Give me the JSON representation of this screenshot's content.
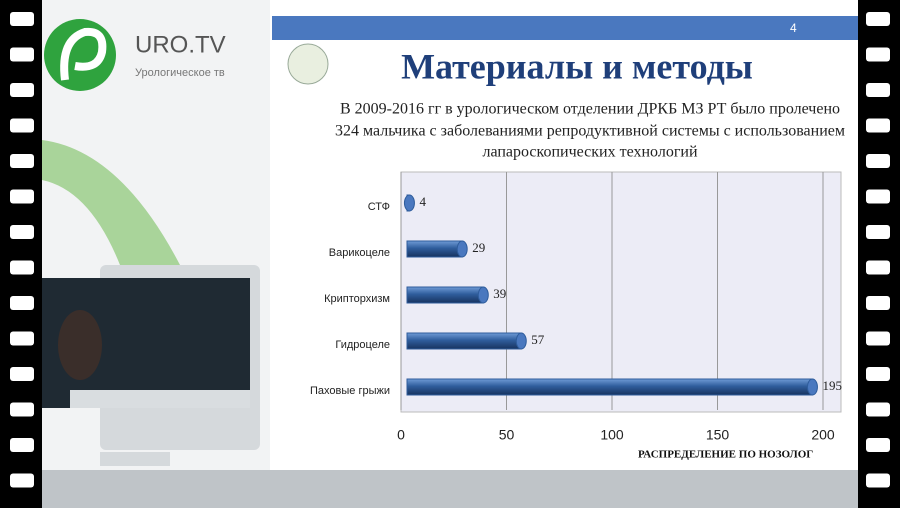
{
  "logo": {
    "name": "URO.TV",
    "tagline": "Урологическое тв"
  },
  "slide": {
    "number": "4",
    "title": "Материалы и методы",
    "text": [
      "В 2009-2016 гг в урологическом отделении ДРКБ МЗ РТ было пролечено",
      "324 мальчика с заболеваниями репродуктивной системы с использованием",
      "лапароскопических технологий"
    ]
  },
  "chart_data": {
    "type": "hbar",
    "x_label": "РАСПРЕДЕЛЕНИЕ ПО НОЗОЛОГ",
    "categories": [
      "СТФ",
      "Варикоцеле",
      "Крипторхизм",
      "Гидроцеле",
      "Паховые грыжи"
    ],
    "values": [
      4,
      29,
      39,
      57,
      195
    ],
    "color": "#2f5d9c",
    "xlim": [
      0,
      200
    ],
    "xticks": [
      0,
      50,
      100,
      150,
      200
    ],
    "grid": true
  }
}
